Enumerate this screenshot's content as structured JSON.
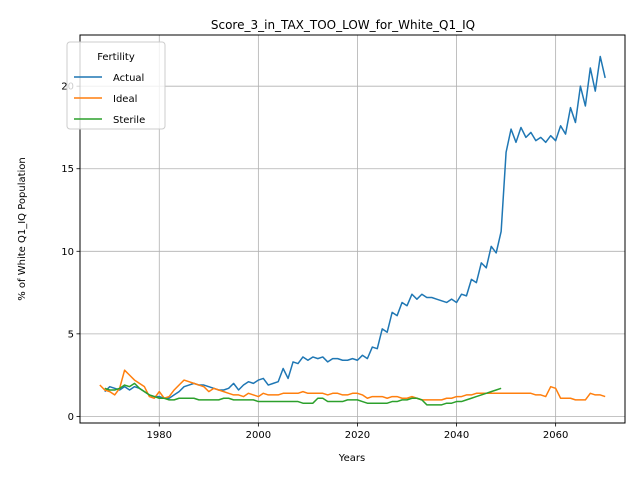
{
  "chart_data": {
    "type": "line",
    "title": "Score_3_in_TAX_TOO_LOW_for_White_Q1_IQ",
    "xlabel": "Years",
    "ylabel": "% of White Q1_IQ Population",
    "xlim": [
      1964,
      2074
    ],
    "ylim": [
      -0.4,
      23.1
    ],
    "xticks": [
      1980,
      2000,
      2020,
      2040,
      2060
    ],
    "yticks": [
      0,
      5,
      10,
      15,
      20
    ],
    "grid": true,
    "legend": {
      "title": "Fertility",
      "placement": "top-left"
    },
    "series": [
      {
        "name": "Actual",
        "color": "#1f77b4",
        "x": [
          1969,
          1970,
          1971,
          1972,
          1973,
          1974,
          1975,
          1976,
          1977,
          1978,
          1979,
          1980,
          1981,
          1982,
          1983,
          1984,
          1985,
          1986,
          1987,
          1988,
          1989,
          1990,
          1991,
          1992,
          1993,
          1994,
          1995,
          1996,
          1997,
          1998,
          1999,
          2000,
          2001,
          2002,
          2003,
          2004,
          2005,
          2006,
          2007,
          2008,
          2009,
          2010,
          2011,
          2012,
          2013,
          2014,
          2015,
          2016,
          2017,
          2018,
          2019,
          2020,
          2021,
          2022,
          2023,
          2024,
          2025,
          2026,
          2027,
          2028,
          2029,
          2030,
          2031,
          2032,
          2033,
          2034,
          2035,
          2036,
          2037,
          2038,
          2039,
          2040,
          2041,
          2042,
          2043,
          2044,
          2045,
          2046,
          2047,
          2048,
          2049,
          2050,
          2051,
          2052,
          2053,
          2054,
          2055,
          2056,
          2057,
          2058,
          2059,
          2060,
          2061,
          2062,
          2063,
          2064,
          2065,
          2066,
          2067,
          2068,
          2069,
          2070
        ],
        "y": [
          1.5,
          1.8,
          1.7,
          1.6,
          1.8,
          1.6,
          1.8,
          1.7,
          1.5,
          1.3,
          1.2,
          1.2,
          1.1,
          1.1,
          1.3,
          1.5,
          1.8,
          1.9,
          2.0,
          1.9,
          1.9,
          1.8,
          1.7,
          1.6,
          1.6,
          1.7,
          2.0,
          1.6,
          1.9,
          2.1,
          2.0,
          2.2,
          2.3,
          1.9,
          2.0,
          2.1,
          2.9,
          2.3,
          3.3,
          3.2,
          3.6,
          3.4,
          3.6,
          3.5,
          3.6,
          3.3,
          3.5,
          3.5,
          3.4,
          3.4,
          3.5,
          3.4,
          3.7,
          3.5,
          4.2,
          4.1,
          5.3,
          5.1,
          6.3,
          6.1,
          6.9,
          6.7,
          7.4,
          7.1,
          7.4,
          7.2,
          7.2,
          7.1,
          7.0,
          6.9,
          7.1,
          6.9,
          7.4,
          7.3,
          8.3,
          8.1,
          9.3,
          9.0,
          10.3,
          9.9,
          11.2,
          16.0,
          17.4,
          16.6,
          17.5,
          16.9,
          17.2,
          16.7,
          16.9,
          16.6,
          17.0,
          16.7,
          17.6,
          17.1,
          18.7,
          17.8,
          20.0,
          18.8,
          21.1,
          19.7,
          21.8,
          20.5
        ]
      },
      {
        "name": "Ideal",
        "color": "#ff7f0e",
        "x": [
          1968,
          1969,
          1970,
          1971,
          1972,
          1973,
          1974,
          1975,
          1976,
          1977,
          1978,
          1979,
          1980,
          1981,
          1982,
          1983,
          1984,
          1985,
          1986,
          1987,
          1988,
          1989,
          1990,
          1991,
          1992,
          1993,
          1994,
          1995,
          1996,
          1997,
          1998,
          1999,
          2000,
          2001,
          2002,
          2003,
          2004,
          2005,
          2006,
          2007,
          2008,
          2009,
          2010,
          2011,
          2012,
          2013,
          2014,
          2015,
          2016,
          2017,
          2018,
          2019,
          2020,
          2021,
          2022,
          2023,
          2024,
          2025,
          2026,
          2027,
          2028,
          2029,
          2030,
          2031,
          2032,
          2033,
          2034,
          2035,
          2036,
          2037,
          2038,
          2039,
          2040,
          2041,
          2042,
          2043,
          2044,
          2045,
          2046,
          2047,
          2048,
          2049,
          2050,
          2051,
          2052,
          2053,
          2054,
          2055,
          2056,
          2057,
          2058,
          2059,
          2060,
          2061,
          2062,
          2063,
          2064,
          2065,
          2066,
          2067,
          2068,
          2069,
          2070
        ],
        "y": [
          1.9,
          1.6,
          1.5,
          1.3,
          1.7,
          2.8,
          2.5,
          2.2,
          2.0,
          1.8,
          1.2,
          1.1,
          1.5,
          1.1,
          1.2,
          1.6,
          1.9,
          2.2,
          2.1,
          2.0,
          1.9,
          1.8,
          1.5,
          1.7,
          1.6,
          1.5,
          1.4,
          1.3,
          1.3,
          1.2,
          1.4,
          1.3,
          1.2,
          1.4,
          1.3,
          1.3,
          1.3,
          1.4,
          1.4,
          1.4,
          1.4,
          1.5,
          1.4,
          1.4,
          1.4,
          1.4,
          1.3,
          1.4,
          1.4,
          1.3,
          1.3,
          1.4,
          1.4,
          1.3,
          1.1,
          1.2,
          1.2,
          1.2,
          1.1,
          1.2,
          1.2,
          1.1,
          1.1,
          1.2,
          1.1,
          1.0,
          1.0,
          1.0,
          1.0,
          1.0,
          1.1,
          1.1,
          1.2,
          1.2,
          1.3,
          1.3,
          1.4,
          1.4,
          1.4,
          1.4,
          1.4,
          1.4,
          1.4,
          1.4,
          1.4,
          1.4,
          1.4,
          1.4,
          1.3,
          1.3,
          1.2,
          1.8,
          1.7,
          1.1,
          1.1,
          1.1,
          1.0,
          1.0,
          1.0,
          1.4,
          1.3,
          1.3,
          1.2
        ]
      },
      {
        "name": "Sterile",
        "color": "#2ca02c",
        "x": [
          1969,
          1970,
          1971,
          1972,
          1973,
          1974,
          1975,
          1976,
          1977,
          1978,
          1979,
          1980,
          1981,
          1982,
          1983,
          1984,
          1985,
          1986,
          1987,
          1988,
          1989,
          1990,
          1991,
          1992,
          1993,
          1994,
          1995,
          1996,
          1997,
          1998,
          1999,
          2000,
          2001,
          2002,
          2003,
          2004,
          2005,
          2006,
          2007,
          2008,
          2009,
          2010,
          2011,
          2012,
          2013,
          2014,
          2015,
          2016,
          2017,
          2018,
          2019,
          2020,
          2021,
          2022,
          2023,
          2024,
          2025,
          2026,
          2027,
          2028,
          2029,
          2030,
          2031,
          2032,
          2033,
          2034,
          2035,
          2036,
          2037,
          2038,
          2039,
          2040,
          2041,
          2042,
          2043,
          2044,
          2045,
          2046,
          2047,
          2048,
          2049
        ],
        "y": [
          1.7,
          1.6,
          1.6,
          1.7,
          1.9,
          1.8,
          2.0,
          1.7,
          1.5,
          1.3,
          1.2,
          1.1,
          1.1,
          1.0,
          1.0,
          1.1,
          1.1,
          1.1,
          1.1,
          1.0,
          1.0,
          1.0,
          1.0,
          1.0,
          1.1,
          1.1,
          1.0,
          1.0,
          1.0,
          1.0,
          1.0,
          0.9,
          0.9,
          0.9,
          0.9,
          0.9,
          0.9,
          0.9,
          0.9,
          0.9,
          0.8,
          0.8,
          0.8,
          1.1,
          1.1,
          0.9,
          0.9,
          0.9,
          0.9,
          1.0,
          1.0,
          1.0,
          0.9,
          0.8,
          0.8,
          0.8,
          0.8,
          0.8,
          0.9,
          0.9,
          1.0,
          1.0,
          1.1,
          1.1,
          1.0,
          0.7,
          0.7,
          0.7,
          0.7,
          0.8,
          0.8,
          0.9,
          0.9,
          1.0,
          1.1,
          1.2,
          1.3,
          1.4,
          1.5,
          1.6,
          1.7
        ]
      }
    ]
  }
}
